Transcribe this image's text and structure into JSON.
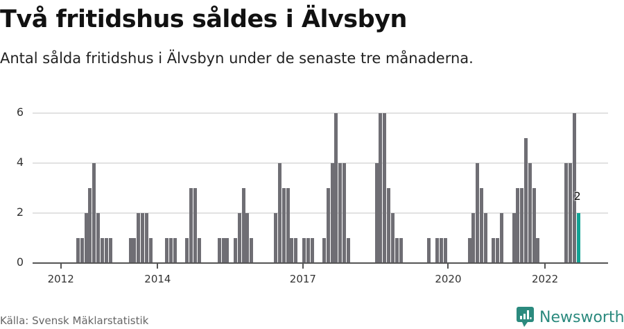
{
  "header": {
    "title": "Två fritidshus såldes i Älvsbyn",
    "subtitle": "Antal sålda fritidshus i Älvsbyn under de senaste tre månaderna."
  },
  "footer": {
    "source": "Källa: Svensk Mäklarstatistik",
    "brand": "Newsworthy",
    "brand_icon": "bar-chart-speech-bubble-icon"
  },
  "colors": {
    "bar": "#6f6e74",
    "highlight": "#11a294",
    "grid": "#e2e2e2",
    "axis": "#555555",
    "brand": "#2b8a7e"
  },
  "chart_data": {
    "type": "bar",
    "title": "Två fritidshus såldes i Älvsbyn",
    "subtitle": "Antal sålda fritidshus i Älvsbyn under de senaste tre månaderna.",
    "xlabel": "",
    "ylabel": "",
    "ylim": [
      0,
      6
    ],
    "yticks": [
      0,
      2,
      4,
      6
    ],
    "grid": true,
    "legend": null,
    "x_tick_labels": [
      "2012",
      "2014",
      "2017",
      "2020",
      "2022"
    ],
    "x_tick_years": [
      2012,
      2014,
      2017,
      2020,
      2022
    ],
    "x_start": "2012-01",
    "x_end": "2022-12",
    "annotation": {
      "label": "2",
      "month": "2022-09"
    },
    "highlight_month": "2022-09",
    "series": [
      {
        "name": "Antal sålda fritidshus",
        "points": [
          {
            "month": "2012-05",
            "value": 1
          },
          {
            "month": "2012-06",
            "value": 1
          },
          {
            "month": "2012-07",
            "value": 2
          },
          {
            "month": "2012-08",
            "value": 3
          },
          {
            "month": "2012-09",
            "value": 4
          },
          {
            "month": "2012-10",
            "value": 2
          },
          {
            "month": "2012-11",
            "value": 1
          },
          {
            "month": "2012-12",
            "value": 1
          },
          {
            "month": "2013-01",
            "value": 1
          },
          {
            "month": "2013-06",
            "value": 1
          },
          {
            "month": "2013-07",
            "value": 1
          },
          {
            "month": "2013-08",
            "value": 2
          },
          {
            "month": "2013-09",
            "value": 2
          },
          {
            "month": "2013-10",
            "value": 2
          },
          {
            "month": "2013-11",
            "value": 1
          },
          {
            "month": "2014-03",
            "value": 1
          },
          {
            "month": "2014-04",
            "value": 1
          },
          {
            "month": "2014-05",
            "value": 1
          },
          {
            "month": "2014-08",
            "value": 1
          },
          {
            "month": "2014-09",
            "value": 3
          },
          {
            "month": "2014-10",
            "value": 3
          },
          {
            "month": "2014-11",
            "value": 1
          },
          {
            "month": "2015-04",
            "value": 1
          },
          {
            "month": "2015-05",
            "value": 1
          },
          {
            "month": "2015-06",
            "value": 1
          },
          {
            "month": "2015-08",
            "value": 1
          },
          {
            "month": "2015-09",
            "value": 2
          },
          {
            "month": "2015-10",
            "value": 3
          },
          {
            "month": "2015-11",
            "value": 2
          },
          {
            "month": "2015-12",
            "value": 1
          },
          {
            "month": "2016-06",
            "value": 2
          },
          {
            "month": "2016-07",
            "value": 4
          },
          {
            "month": "2016-08",
            "value": 3
          },
          {
            "month": "2016-09",
            "value": 3
          },
          {
            "month": "2016-10",
            "value": 1
          },
          {
            "month": "2016-11",
            "value": 1
          },
          {
            "month": "2017-01",
            "value": 1
          },
          {
            "month": "2017-02",
            "value": 1
          },
          {
            "month": "2017-03",
            "value": 1
          },
          {
            "month": "2017-06",
            "value": 1
          },
          {
            "month": "2017-07",
            "value": 3
          },
          {
            "month": "2017-08",
            "value": 4
          },
          {
            "month": "2017-09",
            "value": 6
          },
          {
            "month": "2017-10",
            "value": 4
          },
          {
            "month": "2017-11",
            "value": 4
          },
          {
            "month": "2017-12",
            "value": 1
          },
          {
            "month": "2018-07",
            "value": 4
          },
          {
            "month": "2018-08",
            "value": 6
          },
          {
            "month": "2018-09",
            "value": 6
          },
          {
            "month": "2018-10",
            "value": 3
          },
          {
            "month": "2018-11",
            "value": 2
          },
          {
            "month": "2018-12",
            "value": 1
          },
          {
            "month": "2019-01",
            "value": 1
          },
          {
            "month": "2019-08",
            "value": 1
          },
          {
            "month": "2019-10",
            "value": 1
          },
          {
            "month": "2019-11",
            "value": 1
          },
          {
            "month": "2019-12",
            "value": 1
          },
          {
            "month": "2020-06",
            "value": 1
          },
          {
            "month": "2020-07",
            "value": 2
          },
          {
            "month": "2020-08",
            "value": 4
          },
          {
            "month": "2020-09",
            "value": 3
          },
          {
            "month": "2020-10",
            "value": 2
          },
          {
            "month": "2020-12",
            "value": 1
          },
          {
            "month": "2021-01",
            "value": 1
          },
          {
            "month": "2021-02",
            "value": 2
          },
          {
            "month": "2021-05",
            "value": 2
          },
          {
            "month": "2021-06",
            "value": 3
          },
          {
            "month": "2021-07",
            "value": 3
          },
          {
            "month": "2021-08",
            "value": 5
          },
          {
            "month": "2021-09",
            "value": 4
          },
          {
            "month": "2021-10",
            "value": 3
          },
          {
            "month": "2021-11",
            "value": 1
          },
          {
            "month": "2022-06",
            "value": 4
          },
          {
            "month": "2022-07",
            "value": 4
          },
          {
            "month": "2022-08",
            "value": 6
          },
          {
            "month": "2022-09",
            "value": 2
          }
        ]
      }
    ]
  }
}
